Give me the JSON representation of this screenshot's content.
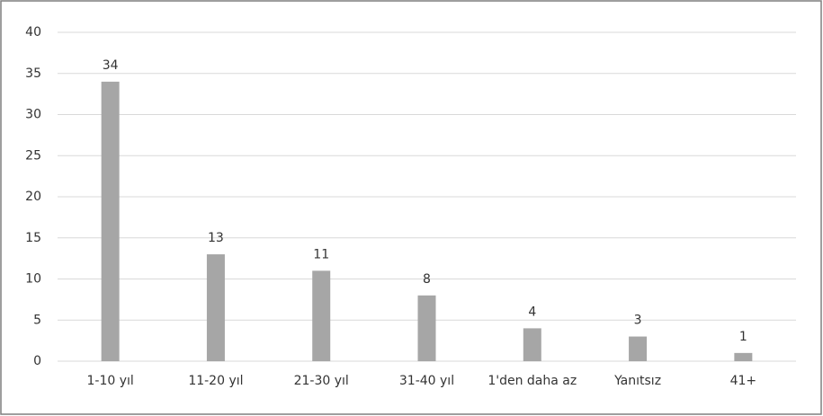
{
  "chart_data": {
    "type": "bar",
    "categories": [
      "1-10 yıl",
      "11-20 yıl",
      "21-30 yıl",
      "31-40 yıl",
      "1'den daha az",
      "Yanıtsız",
      "41+"
    ],
    "values": [
      34,
      13,
      11,
      8,
      4,
      3,
      1
    ],
    "color": "#a6a6a6",
    "ylim": [
      0,
      40
    ],
    "yticks": [
      0,
      5,
      10,
      15,
      20,
      25,
      30,
      35,
      40
    ],
    "grid": true
  }
}
